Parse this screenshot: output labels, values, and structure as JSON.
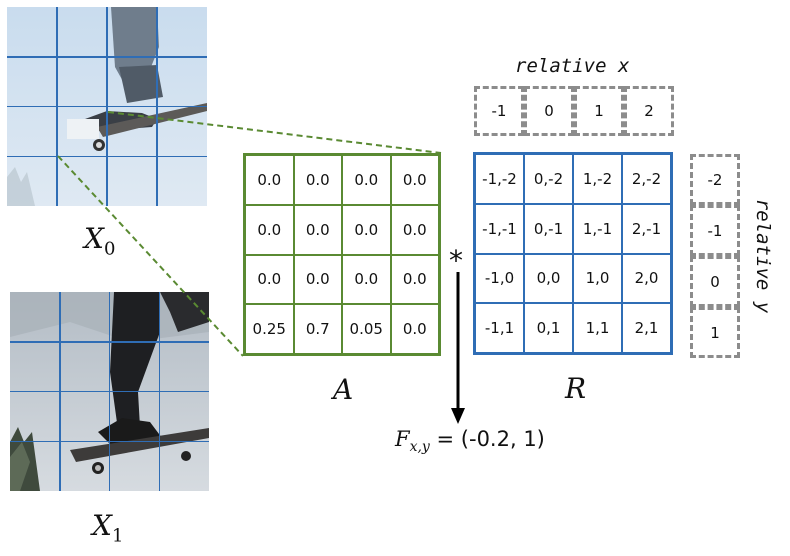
{
  "frames": {
    "x0": {
      "label_base": "X",
      "label_sub": "0"
    },
    "x1": {
      "label_base": "X",
      "label_sub": "1"
    }
  },
  "matrix_a": {
    "label": "A",
    "rows": [
      [
        "0.0",
        "0.0",
        "0.0",
        "0.0"
      ],
      [
        "0.0",
        "0.0",
        "0.0",
        "0.0"
      ],
      [
        "0.0",
        "0.0",
        "0.0",
        "0.0"
      ],
      [
        "0.25",
        "0.7",
        "0.05",
        "0.0"
      ]
    ]
  },
  "operator": "*",
  "matrix_r": {
    "label": "R",
    "rows": [
      [
        "-1,-2",
        "0,-2",
        "1,-2",
        "2,-2"
      ],
      [
        "-1,-1",
        "0,-1",
        "1,-1",
        "2,-1"
      ],
      [
        "-1,0",
        "0,0",
        "1,0",
        "2,0"
      ],
      [
        "-1,1",
        "0,1",
        "1,1",
        "2,1"
      ]
    ]
  },
  "relative_x": {
    "title": "relative x",
    "values": [
      "-1",
      "0",
      "1",
      "2"
    ]
  },
  "relative_y": {
    "title": "relative y",
    "values": [
      "-2",
      "-1",
      "0",
      "1"
    ]
  },
  "result": {
    "symbol": "F",
    "subscript": "x,y",
    "value": "= (-0.2, 1)"
  },
  "colors": {
    "matrix_a_border": "#5a8a32",
    "matrix_r_border": "#2f6db5",
    "dashed": "#8c8c8c",
    "connector": "#5a8a32"
  }
}
